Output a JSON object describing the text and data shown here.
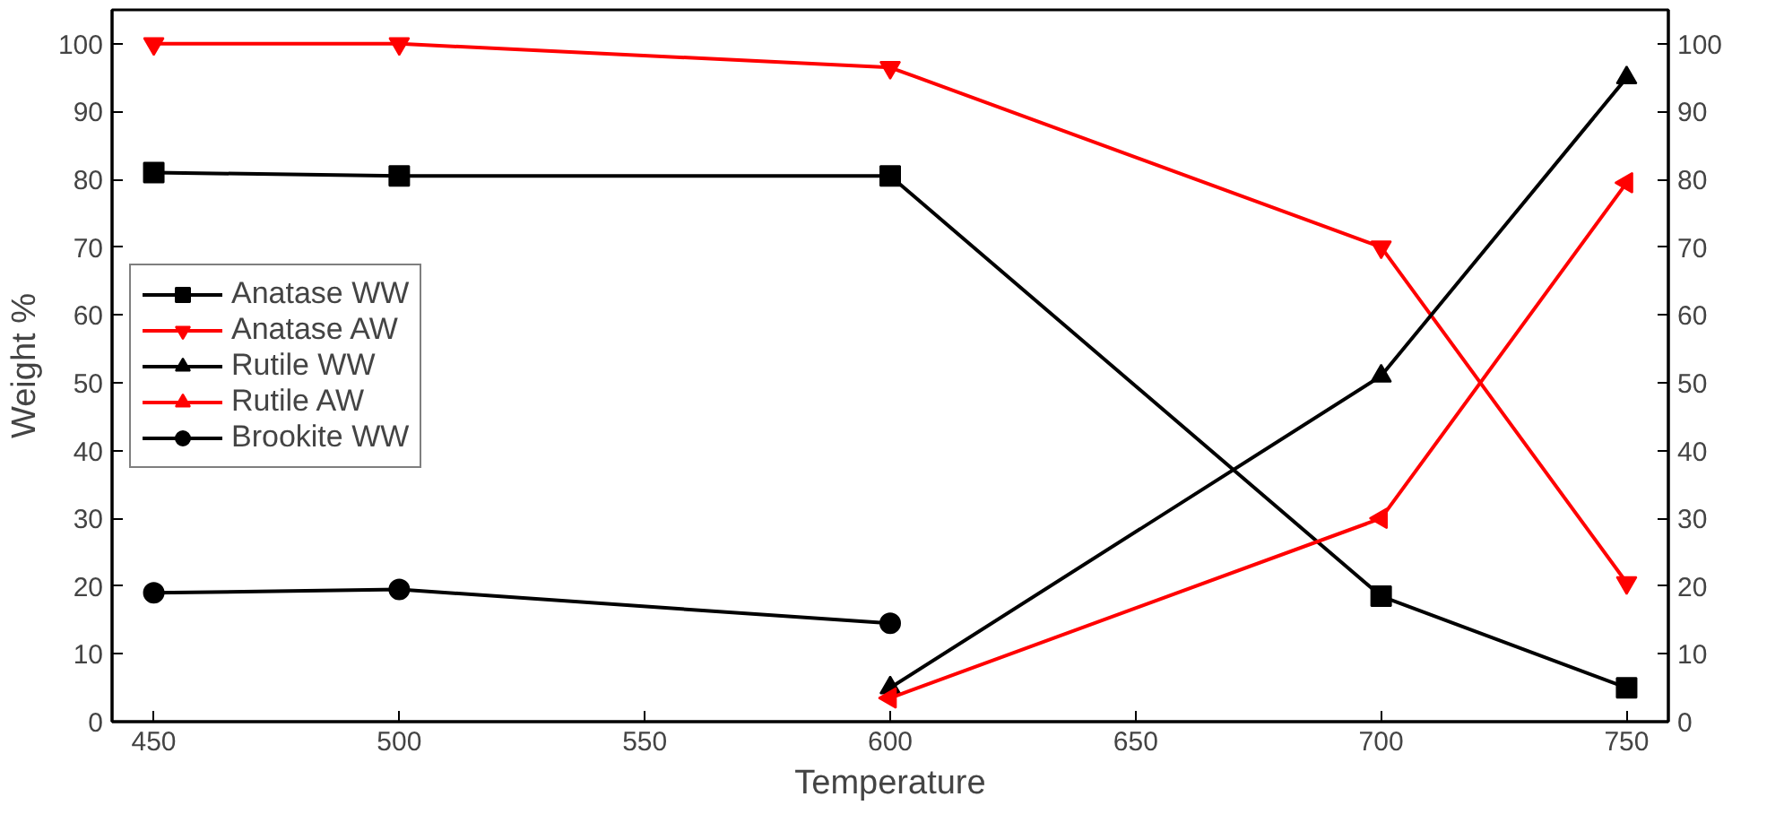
{
  "chart_data": {
    "type": "line",
    "xlabel": "Temperature",
    "ylabel": "Weight %",
    "x": [
      450,
      500,
      600,
      700,
      750
    ],
    "series": [
      {
        "name": "Anatase WW",
        "color": "#000000",
        "marker": "square",
        "values": [
          81,
          80.5,
          80.5,
          18.5,
          5
        ]
      },
      {
        "name": "Anatase AW",
        "color": "#ff0000",
        "marker": "triangle_down",
        "values": [
          100,
          100,
          96.5,
          70,
          20.5
        ]
      },
      {
        "name": "Rutile WW",
        "color": "#000000",
        "marker": "triangle",
        "values": [
          null,
          null,
          5,
          51,
          95
        ]
      },
      {
        "name": "Rutile AW",
        "color": "#ff0000",
        "marker": "triangle_left",
        "values": [
          null,
          null,
          3.5,
          30,
          79.5
        ]
      },
      {
        "name": "Brookite WW",
        "color": "#000000",
        "marker": "circle",
        "values": [
          19,
          19.5,
          14.5,
          null,
          null
        ]
      }
    ],
    "xlim": [
      441.5,
      758.5
    ],
    "xticks": [
      450,
      500,
      550,
      600,
      650,
      700,
      750
    ],
    "ylim": [
      0,
      105
    ],
    "yticks": [
      0,
      10,
      20,
      30,
      40,
      50,
      60,
      70,
      80,
      90,
      100
    ],
    "y2lim": [
      0,
      105
    ],
    "y2ticks": [
      0,
      10,
      20,
      30,
      40,
      50,
      60,
      70,
      80,
      90,
      100
    ],
    "legend": "left",
    "grid": false,
    "line_style": "solid"
  }
}
